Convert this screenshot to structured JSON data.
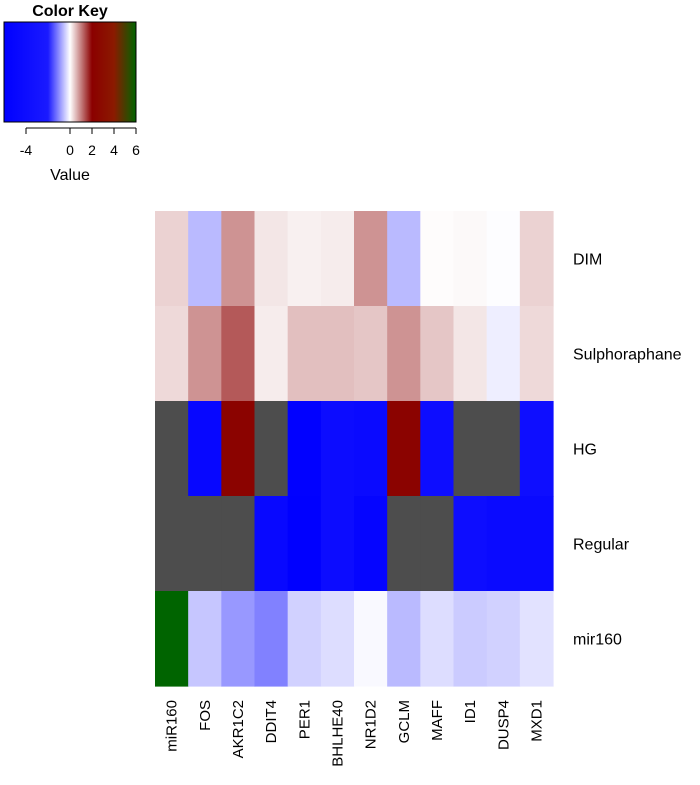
{
  "chart_data": {
    "type": "heatmap",
    "color_key": {
      "title": "Color Key",
      "xlabel": "Value",
      "range": [
        -6,
        6
      ],
      "ticks": [
        -4,
        0,
        2,
        4,
        6
      ],
      "tick_labels": [
        "-4",
        "0",
        "2",
        "4",
        "6"
      ],
      "stops": [
        {
          "value": -6,
          "color": "#0000ff"
        },
        {
          "value": -2,
          "color": "#1a1aff"
        },
        {
          "value": 0,
          "color": "#ffffff"
        },
        {
          "value": 2,
          "color": "#8b0000"
        },
        {
          "value": 4,
          "color": "#8b1a00"
        },
        {
          "value": 6,
          "color": "#006400"
        }
      ]
    },
    "na_color": "#4d4d4d",
    "rows": [
      "DIM",
      "Sulphoraphane",
      "HG",
      "Regular",
      "mir160"
    ],
    "columns": [
      "miR160",
      "FOS",
      "AKR1C2",
      "DDIT4",
      "PER1",
      "BHLHE40",
      "NR1D2",
      "GCLM",
      "MAFF",
      "ID1",
      "DUSP4",
      "MXD1"
    ],
    "values": [
      [
        0.35,
        -0.6,
        0.85,
        0.2,
        0.12,
        0.15,
        0.85,
        -0.6,
        0.02,
        0.05,
        -0.02,
        0.35
      ],
      [
        0.3,
        0.85,
        1.3,
        0.15,
        0.5,
        0.5,
        0.45,
        0.85,
        0.45,
        0.2,
        -0.15,
        0.3
      ],
      [
        null,
        -5.0,
        2.2,
        null,
        -5.8,
        -4.2,
        -4.5,
        2.2,
        -4.0,
        null,
        null,
        -3.8
      ],
      [
        null,
        null,
        null,
        -4.7,
        -6.0,
        -4.2,
        -5.3,
        null,
        null,
        -4.0,
        -4.5,
        -4.5
      ],
      [
        6.0,
        -0.5,
        -0.9,
        -1.1,
        -0.4,
        -0.3,
        -0.05,
        -0.6,
        -0.3,
        -0.45,
        -0.4,
        -0.25
      ]
    ]
  }
}
